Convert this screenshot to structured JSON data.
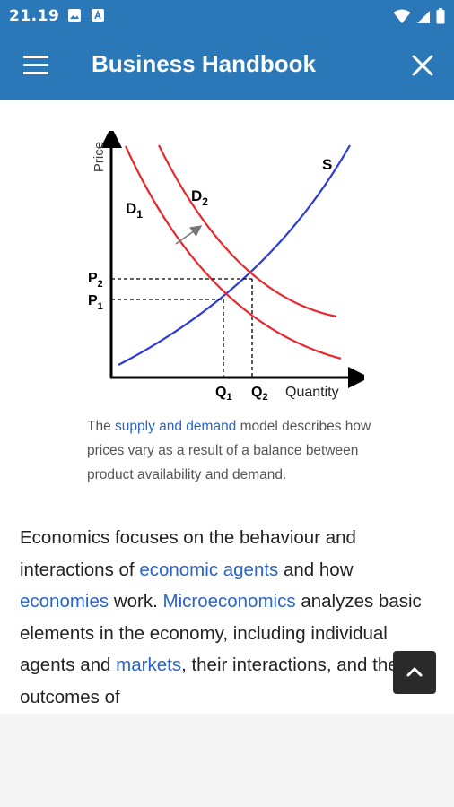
{
  "status_bar": {
    "time": "21.19",
    "icons_left": [
      "image-icon",
      "app-notification-icon"
    ],
    "icons_right": [
      "wifi-icon",
      "signal-icon",
      "battery-icon"
    ]
  },
  "app_bar": {
    "title": "Business Handbook",
    "menu_icon": "menu-icon",
    "close_icon": "close-icon"
  },
  "figure": {
    "y_axis_label": "Price",
    "x_axis_label": "Quantity",
    "supply_label": "S",
    "demand1_label": "D",
    "demand1_sub": "1",
    "demand2_label": "D",
    "demand2_sub": "2",
    "p1_label": "P",
    "p1_sub": "1",
    "p2_label": "P",
    "p2_sub": "2",
    "q1_label": "Q",
    "q1_sub": "1",
    "q2_label": "Q",
    "q2_sub": "2",
    "colors": {
      "supply": "#2b3bdc",
      "demand": "#e8282d",
      "arrow": "#777777"
    }
  },
  "caption": {
    "prefix": "The ",
    "link": "supply and demand",
    "suffix": " model describes how prices vary as a result of a balance between product availability and demand."
  },
  "body": {
    "t1": "Economics focuses on the behaviour and interactions of ",
    "l1": "economic agents",
    "t2": " and how ",
    "l2": "economies",
    "t3": " work. ",
    "l3": "Microeconomics",
    "t4": " analyzes basic elements in the economy, including individual agents and ",
    "l4": "markets",
    "t5": ", their interactions, and the outcomes of"
  },
  "scroll_top": {
    "icon": "chevron-up-icon"
  }
}
